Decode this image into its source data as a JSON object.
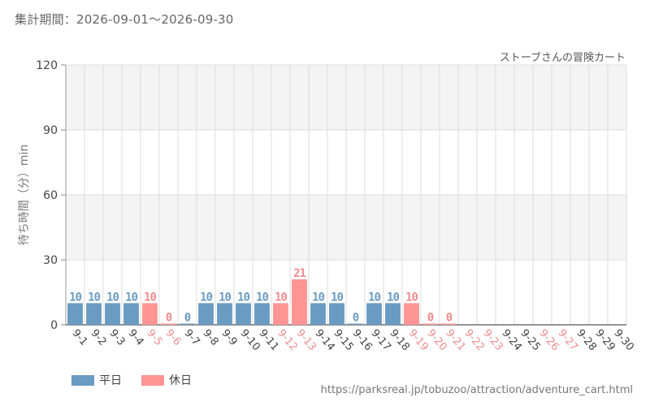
{
  "header": {
    "period_label": "集計期間：2026-09-01～2026-09-30"
  },
  "footer": {
    "source_url": "https://parksreal.jp/tobuzoo/attraction/adventure_cart.html"
  },
  "colors": {
    "weekday": "#6a9bc3",
    "holiday": "#ff9494",
    "weekday_text": "#6a9bc3",
    "holiday_text": "#ef8c8c",
    "axis_text": "#444444",
    "band": "#f4f4f4",
    "grid": "#dddddd"
  },
  "chart_data": {
    "type": "bar",
    "title": "ストーブさんの冒険カート",
    "ylabel": "待ち時間（分）min",
    "xlabel": "",
    "ylim": [
      0,
      120
    ],
    "yticks": [
      0,
      30,
      60,
      90,
      120
    ],
    "grid": true,
    "legend_position": "bottom-left",
    "series": [
      {
        "name": "平日",
        "color_key": "weekday"
      },
      {
        "name": "休日",
        "color_key": "holiday"
      }
    ],
    "categories": [
      "9-1",
      "9-2",
      "9-3",
      "9-4",
      "9-5",
      "9-6",
      "9-7",
      "9-8",
      "9-9",
      "9-10",
      "9-11",
      "9-12",
      "9-13",
      "9-14",
      "9-15",
      "9-16",
      "9-17",
      "9-18",
      "9-19",
      "9-20",
      "9-21",
      "9-22",
      "9-23",
      "9-24",
      "9-25",
      "9-26",
      "9-27",
      "9-28",
      "9-29",
      "9-30"
    ],
    "values": [
      10,
      10,
      10,
      10,
      10,
      0,
      0,
      10,
      10,
      10,
      10,
      10,
      21,
      10,
      10,
      0,
      10,
      10,
      10,
      0,
      0,
      null,
      null,
      null,
      null,
      null,
      null,
      null,
      null,
      null
    ],
    "value_labels": [
      "10",
      "10",
      "10",
      "10",
      "10",
      "0",
      "0",
      "10",
      "10",
      "10",
      "10",
      "10",
      "21",
      "10",
      "10",
      "0",
      "10",
      "10",
      "10",
      "0",
      "0",
      "",
      "",
      "",
      "",
      "",
      "",
      "",
      "",
      ""
    ],
    "day_type": [
      "weekday",
      "weekday",
      "weekday",
      "weekday",
      "holiday",
      "holiday",
      "weekday",
      "weekday",
      "weekday",
      "weekday",
      "weekday",
      "holiday",
      "holiday",
      "weekday",
      "weekday",
      "weekday",
      "weekday",
      "weekday",
      "holiday",
      "holiday",
      "holiday",
      "holiday",
      "holiday",
      "weekday",
      "weekday",
      "holiday",
      "holiday",
      "weekday",
      "weekday",
      "weekday"
    ]
  }
}
